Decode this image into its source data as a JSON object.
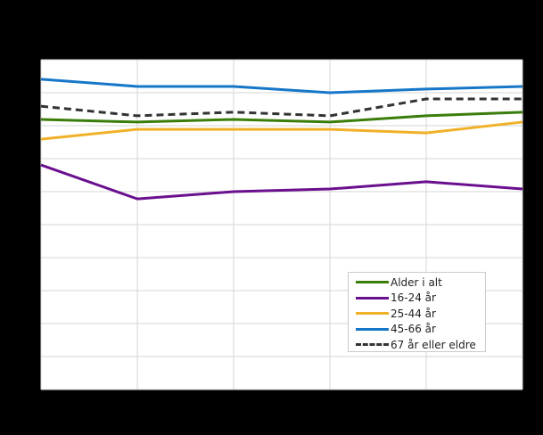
{
  "chart_data": {
    "type": "line",
    "title": "",
    "xlabel": "",
    "ylabel": "",
    "x": [
      "1",
      "2",
      "3",
      "4",
      "5",
      "6"
    ],
    "ylim": [
      0,
      100
    ],
    "y_gridlines": 10,
    "grid": true,
    "legend_position": "lower right inside plot",
    "series": [
      {
        "name": "Alder i alt",
        "color": "#3a7d0a",
        "dashed": false,
        "values": [
          81.9,
          81.1,
          81.9,
          81.1,
          83.0,
          84.1
        ]
      },
      {
        "name": "16-24 år",
        "color": "#6a0f8e",
        "dashed": false,
        "values": [
          68.1,
          57.8,
          60.0,
          60.8,
          63.0,
          60.8
        ]
      },
      {
        "name": "25-44 år",
        "color": "#f0b128",
        "dashed": false,
        "values": [
          75.9,
          78.9,
          78.9,
          78.9,
          77.8,
          81.1
        ]
      },
      {
        "name": "45-66 år",
        "color": "#1677c9",
        "dashed": false,
        "values": [
          94.1,
          91.9,
          91.9,
          90.0,
          91.1,
          91.9
        ]
      },
      {
        "name": "67 år eller eldre",
        "color": "#333333",
        "dashed": true,
        "values": [
          85.9,
          83.0,
          84.1,
          83.0,
          88.1,
          88.1
        ]
      }
    ]
  },
  "legend": {
    "items": [
      {
        "label": "Alder i alt"
      },
      {
        "label": "16-24 år"
      },
      {
        "label": "25-44 år"
      },
      {
        "label": "45-66 år"
      },
      {
        "label": "67 år eller eldre"
      }
    ]
  }
}
